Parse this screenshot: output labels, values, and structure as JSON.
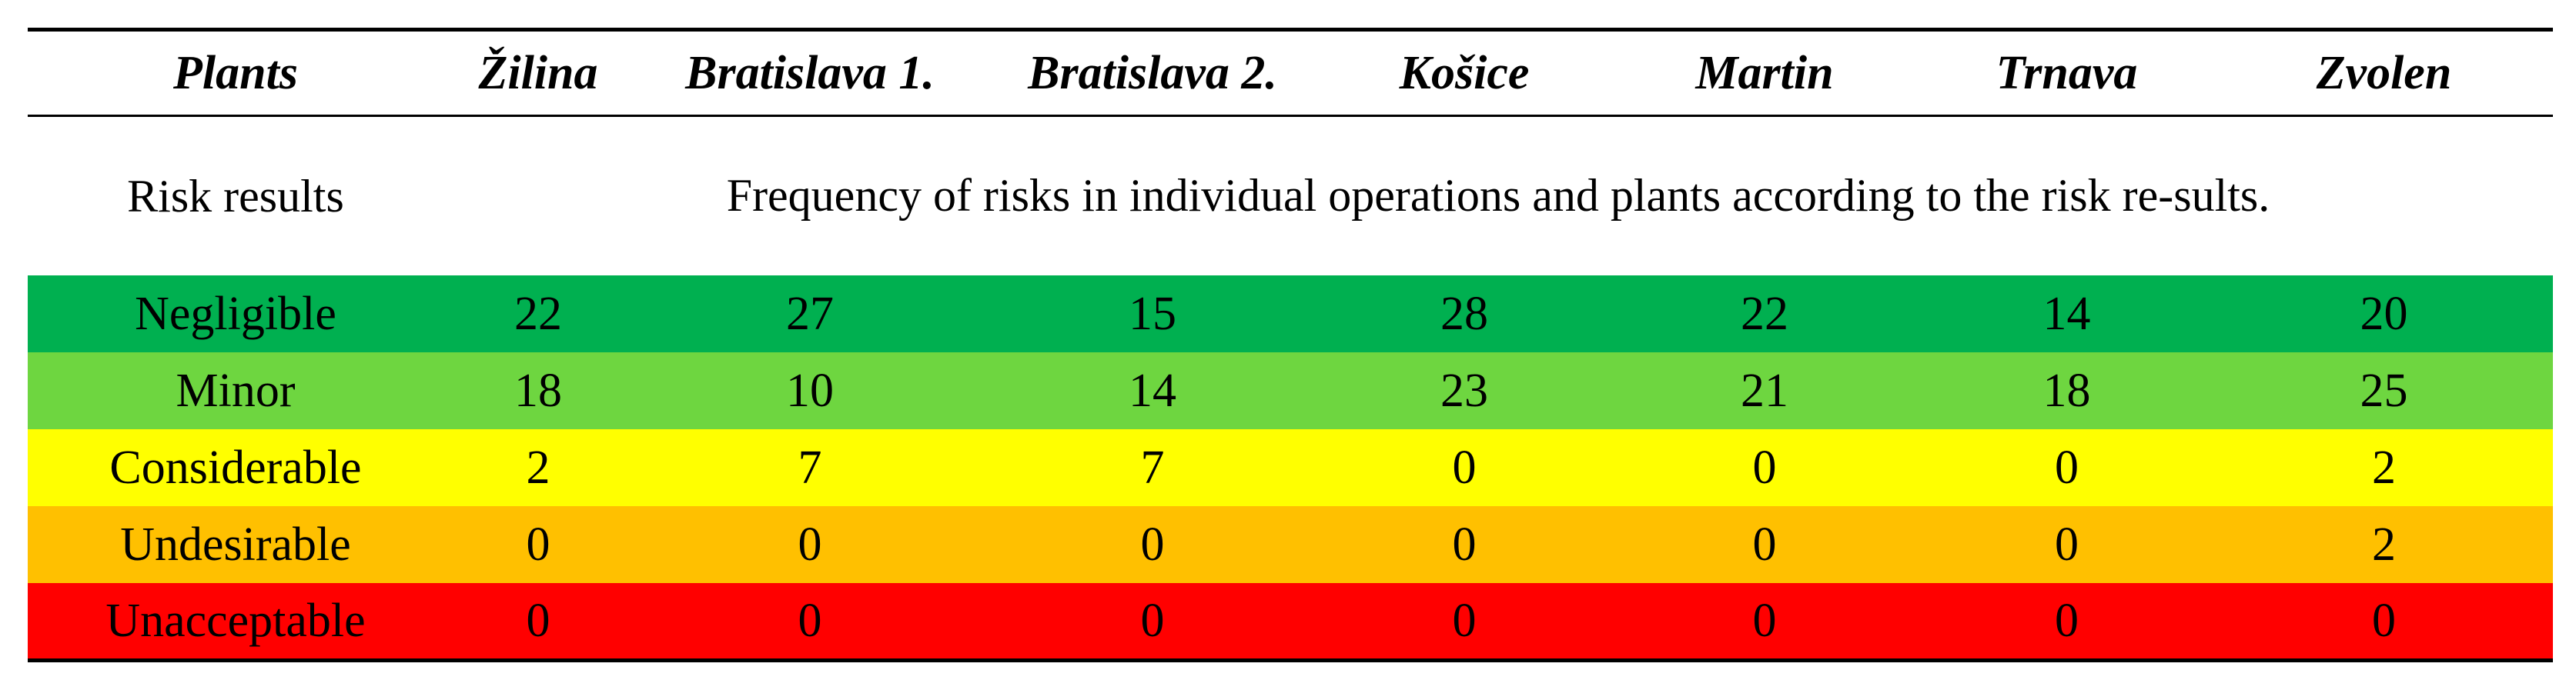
{
  "table": {
    "header": [
      "Plants",
      "Žilina",
      "Bratislava 1.",
      "Bratislava 2.",
      "Košice",
      "Martin",
      "Trnava",
      "Zvolen"
    ],
    "subheader": {
      "label": "Risk results",
      "description": "Frequency of risks in individual operations and plants according to the risk re-sults."
    },
    "rows": [
      {
        "label": "Negligible",
        "color": "#00B050",
        "values": [
          "22",
          "27",
          "15",
          "28",
          "22",
          "14",
          "20"
        ]
      },
      {
        "label": "Minor",
        "color": "#6ED640",
        "values": [
          "18",
          "10",
          "14",
          "23",
          "21",
          "18",
          "25"
        ]
      },
      {
        "label": "Considerable",
        "color": "#FFFF00",
        "values": [
          "2",
          "7",
          "7",
          "0",
          "0",
          "0",
          "2"
        ]
      },
      {
        "label": "Undesirable",
        "color": "#FFC000",
        "values": [
          "0",
          "0",
          "0",
          "0",
          "0",
          "0",
          "2"
        ]
      },
      {
        "label": "Unacceptable",
        "color": "#FF0000",
        "values": [
          "0",
          "0",
          "0",
          "0",
          "0",
          "0",
          "0"
        ]
      }
    ]
  }
}
